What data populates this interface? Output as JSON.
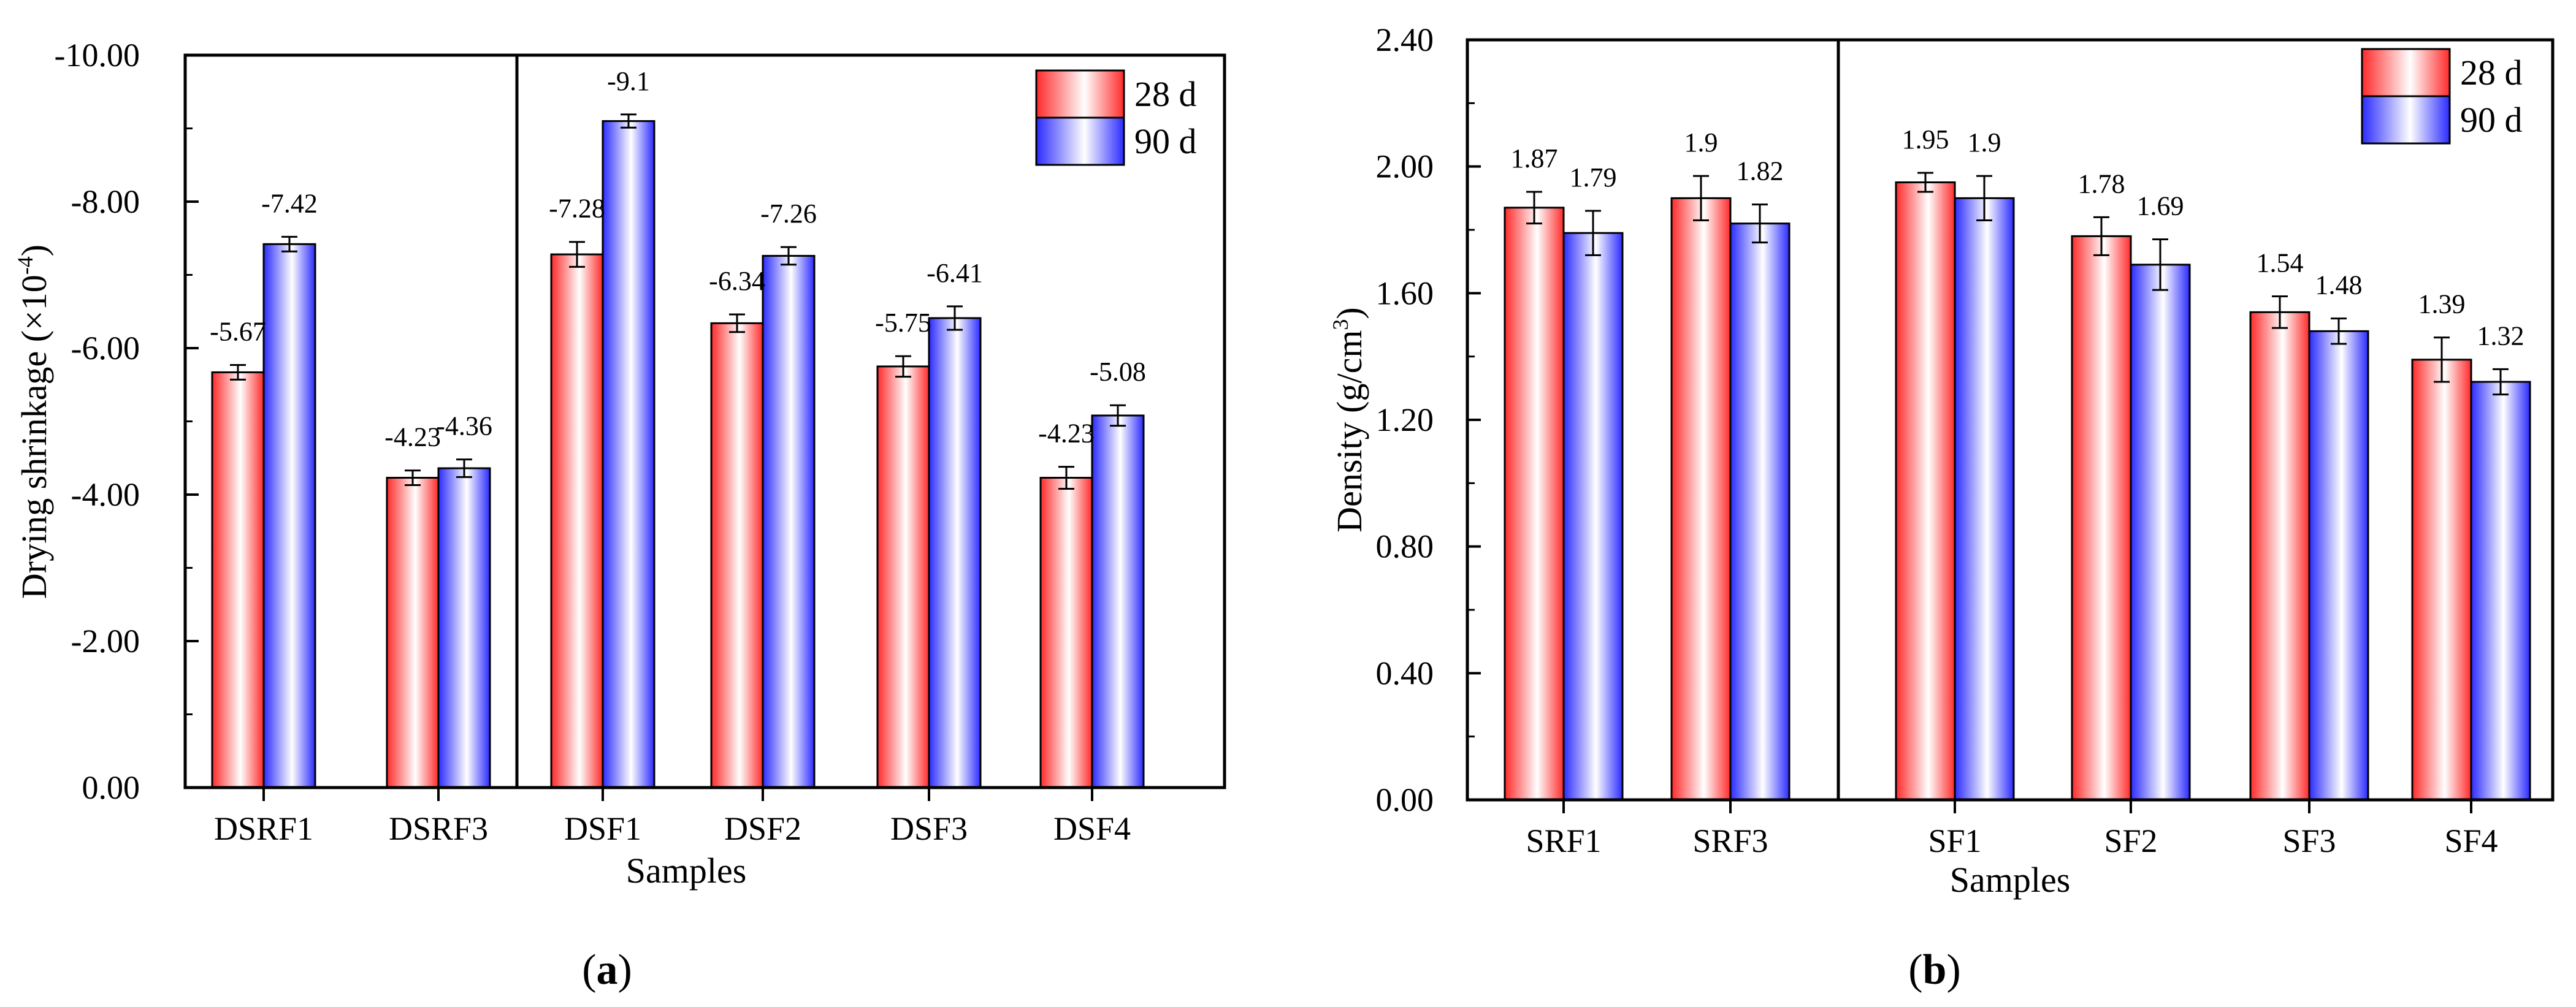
{
  "chart_data": [
    {
      "type": "bar",
      "panel": "a",
      "title": "",
      "xlabel": "Samples",
      "ylabel": "Drying shrinkage (×10",
      "ylabel_sup": "-4",
      "ylabel_close": ")",
      "categories": [
        "DSRF1",
        "DSRF3",
        "DSF1",
        "DSF2",
        "DSF3",
        "DSF4"
      ],
      "series": [
        {
          "name": "28 d",
          "values": [
            -5.67,
            -4.23,
            -7.28,
            -6.34,
            -5.75,
            -4.23
          ],
          "errors": [
            0.1,
            0.1,
            0.17,
            0.12,
            0.14,
            0.15
          ]
        },
        {
          "name": "90 d",
          "values": [
            -7.42,
            -4.36,
            -9.1,
            -7.26,
            -6.41,
            -5.08
          ],
          "errors": [
            0.1,
            0.12,
            0.09,
            0.12,
            0.16,
            0.14
          ]
        }
      ],
      "data_labels": [
        [
          "-5.67",
          "-4.23",
          "-7.28",
          "-6.34",
          "-5.75",
          "-4.23"
        ],
        [
          "-7.42",
          "-4.36",
          "-9.1",
          "-7.26",
          "-6.41",
          "-5.08"
        ]
      ],
      "ylim": [
        0,
        -10
      ],
      "yticks": [
        "0.00",
        "-2.00",
        "-4.00",
        "-6.00",
        "-8.00",
        "-10.00"
      ],
      "ytick_values": [
        0,
        -2,
        -4,
        -6,
        -8,
        -10
      ],
      "divider_after_category": 1,
      "legend": "top-right",
      "panel_label": "a"
    },
    {
      "type": "bar",
      "panel": "b",
      "title": "",
      "xlabel": "Samples",
      "ylabel": "Density (g/cm",
      "ylabel_sup": "3",
      "ylabel_close": ")",
      "categories": [
        "SRF1",
        "SRF3",
        "SF1",
        "SF2",
        "SF3",
        "SF4"
      ],
      "series": [
        {
          "name": "28 d",
          "values": [
            1.87,
            1.9,
            1.95,
            1.78,
            1.54,
            1.39
          ],
          "errors": [
            0.05,
            0.07,
            0.03,
            0.06,
            0.05,
            0.07
          ]
        },
        {
          "name": "90 d",
          "values": [
            1.79,
            1.82,
            1.9,
            1.69,
            1.48,
            1.32
          ],
          "errors": [
            0.07,
            0.06,
            0.07,
            0.08,
            0.04,
            0.04
          ]
        }
      ],
      "data_labels": [
        [
          "1.87",
          "1.9",
          "1.95",
          "1.78",
          "1.54",
          "1.39"
        ],
        [
          "1.79",
          "1.82",
          "1.9",
          "1.69",
          "1.48",
          "1.32"
        ]
      ],
      "ylim": [
        0,
        2.4
      ],
      "yticks": [
        "0.00",
        "0.40",
        "0.80",
        "1.20",
        "1.60",
        "2.00",
        "2.40"
      ],
      "ytick_values": [
        0,
        0.4,
        0.8,
        1.2,
        1.6,
        2.0,
        2.4
      ],
      "divider_after_category": 1,
      "legend": "top-right",
      "panel_label": "b"
    }
  ],
  "colors": {
    "series_28d": "#ff2a2a",
    "series_90d": "#2b2bff",
    "axis": "#000000"
  }
}
